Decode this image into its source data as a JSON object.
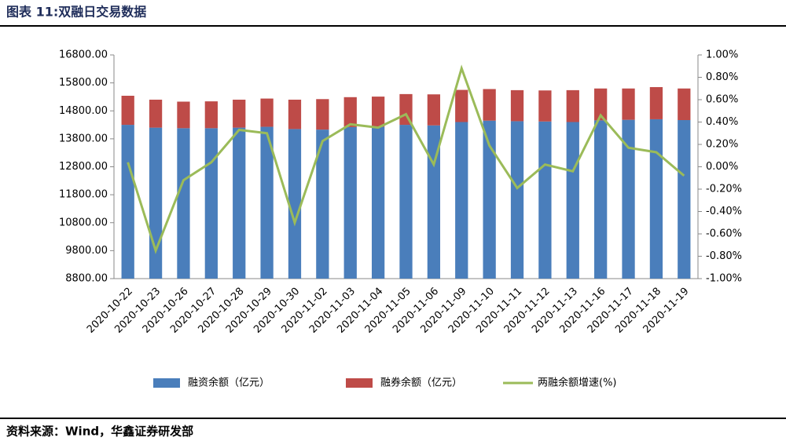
{
  "chart_data": {
    "type": "bar",
    "title": "图表 11:双融日交易数据",
    "source": "资料来源：Wind，华鑫证券研发部",
    "categories": [
      "2020-10-22",
      "2020-10-23",
      "2020-10-26",
      "2020-10-27",
      "2020-10-28",
      "2020-10-29",
      "2020-10-30",
      "2020-11-02",
      "2020-11-03",
      "2020-11-04",
      "2020-11-05",
      "2020-11-06",
      "2020-11-09",
      "2020-11-10",
      "2020-11-11",
      "2020-11-12",
      "2020-11-13",
      "2020-11-16",
      "2020-11-17",
      "2020-11-18",
      "2020-11-19"
    ],
    "series": [
      {
        "name": "融资余额（亿元）",
        "color": "#4a7ebb",
        "stack": true,
        "values": [
          14300,
          14200,
          14180,
          14180,
          14200,
          14230,
          14150,
          14130,
          14220,
          14230,
          14300,
          14280,
          14400,
          14450,
          14430,
          14420,
          14400,
          14460,
          14480,
          14500,
          14470
        ]
      },
      {
        "name": "融券余额（亿元）",
        "color": "#be4b48",
        "stack": true,
        "values": [
          1040,
          1000,
          950,
          960,
          1000,
          1010,
          1050,
          1090,
          1070,
          1080,
          1100,
          1110,
          1150,
          1130,
          1110,
          1110,
          1140,
          1140,
          1120,
          1150,
          1130
        ]
      },
      {
        "name": "两融余额增速(%)",
        "color": "#9bbb59",
        "type": "line",
        "axis": "y2",
        "values": [
          0.04,
          -0.75,
          -0.12,
          0.04,
          0.33,
          0.3,
          -0.5,
          0.23,
          0.38,
          0.35,
          0.47,
          0.02,
          0.88,
          0.19,
          -0.19,
          0.02,
          -0.04,
          0.46,
          0.17,
          0.13,
          -0.08
        ]
      }
    ],
    "ylim": [
      8800,
      16800
    ],
    "yticks": [
      {
        "value": 8800,
        "label": "8800.00"
      },
      {
        "value": 9800,
        "label": "9800.00"
      },
      {
        "value": 10800,
        "label": "10800.00"
      },
      {
        "value": 11800,
        "label": "11800.00"
      },
      {
        "value": 12800,
        "label": "12800.00"
      },
      {
        "value": 13800,
        "label": "13800.00"
      },
      {
        "value": 14800,
        "label": "14800.00"
      },
      {
        "value": 15800,
        "label": "15800.00"
      },
      {
        "value": 16800,
        "label": "16800.00"
      }
    ],
    "y2lim": [
      -1,
      1
    ],
    "y2ticks": [
      {
        "value": -1,
        "label": "-1.00%"
      },
      {
        "value": -0.8,
        "label": "-0.80%"
      },
      {
        "value": -0.6,
        "label": "-0.60%"
      },
      {
        "value": -0.4,
        "label": "-0.40%"
      },
      {
        "value": -0.2,
        "label": "-0.20%"
      },
      {
        "value": 0,
        "label": "0.00%"
      },
      {
        "value": 0.2,
        "label": "0.20%"
      },
      {
        "value": 0.4,
        "label": "0.40%"
      },
      {
        "value": 0.6,
        "label": "0.60%"
      },
      {
        "value": 0.8,
        "label": "0.80%"
      },
      {
        "value": 1,
        "label": "1.00%"
      }
    ]
  }
}
